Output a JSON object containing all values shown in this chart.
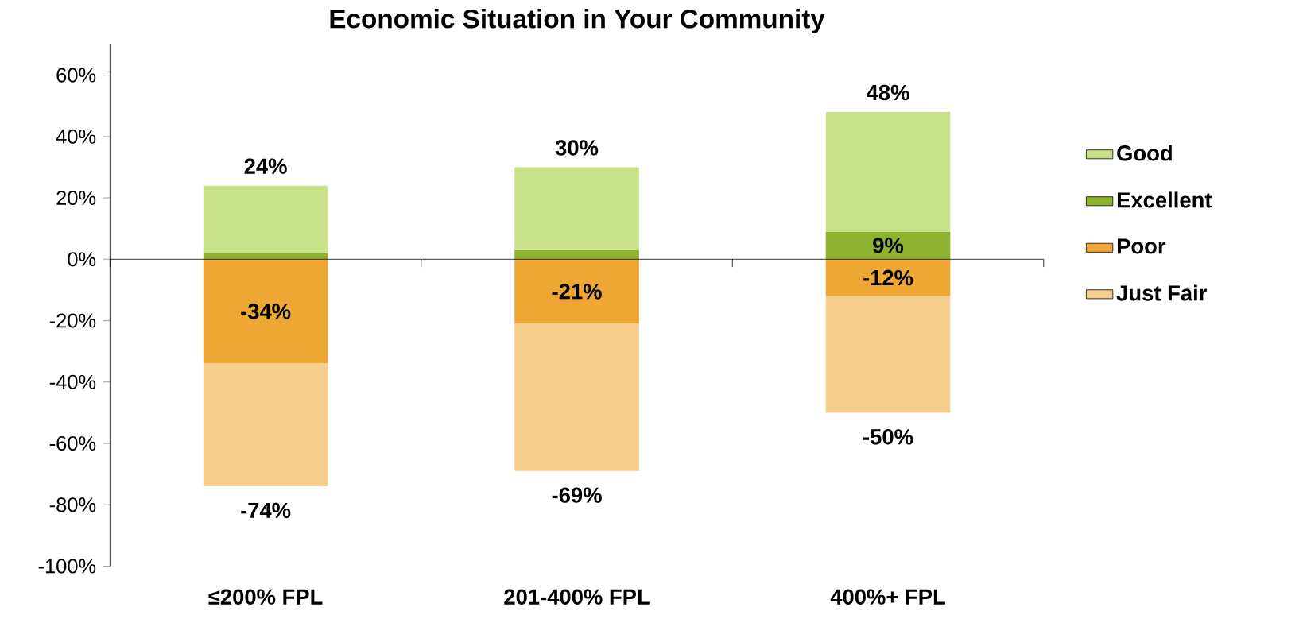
{
  "chart_data": {
    "type": "bar",
    "title": "Economic Situation in Your Community",
    "stacked": true,
    "categories": [
      "≤200% FPL",
      "201-400% FPL",
      "400%+ FPL"
    ],
    "series": [
      {
        "name": "Excellent",
        "color": "#8db32f",
        "values": [
          2,
          3,
          9
        ],
        "value_labels": [
          null,
          null,
          "9%"
        ]
      },
      {
        "name": "Good",
        "color": "#c9e28a",
        "values": [
          22,
          27,
          39
        ]
      },
      {
        "name": "Poor",
        "color": "#eea733",
        "values": [
          -34,
          -21,
          -12
        ],
        "value_labels": [
          "-34%",
          "-21%",
          "-12%"
        ]
      },
      {
        "name": "Just Fair",
        "color": "#f5cd8d",
        "values": [
          -40,
          -48,
          -38
        ]
      }
    ],
    "annotations": [
      {
        "text": "24%",
        "x": "≤200% FPL",
        "y": 24
      },
      {
        "text": "30%",
        "x": "201-400% FPL",
        "y": 30
      },
      {
        "text": "48%",
        "x": "400%+ FPL",
        "y": 48
      },
      {
        "text": "-74%",
        "x": "≤200% FPL",
        "y": -74
      },
      {
        "text": "-69%",
        "x": "201-400% FPL",
        "y": -69
      },
      {
        "text": "-50%",
        "x": "400%+ FPL",
        "y": -50
      }
    ],
    "ylim": [
      -100,
      70
    ],
    "yticks": [
      {
        "value": -100,
        "label": "-100%"
      },
      {
        "value": -80,
        "label": "-80%"
      },
      {
        "value": -60,
        "label": "-60%"
      },
      {
        "value": -40,
        "label": "-40%"
      },
      {
        "value": -20,
        "label": "-20%"
      },
      {
        "value": 0,
        "label": "0%"
      },
      {
        "value": 20,
        "label": "20%"
      },
      {
        "value": 40,
        "label": "40%"
      },
      {
        "value": 60,
        "label": "60%"
      }
    ],
    "legend": "right"
  }
}
